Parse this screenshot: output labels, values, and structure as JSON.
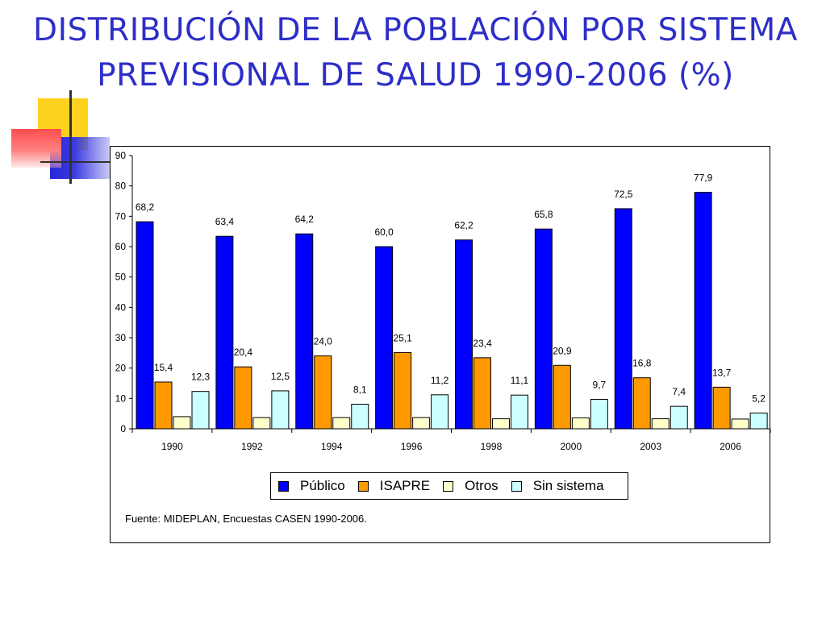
{
  "slide": {
    "title": "DISTRIBUCIÓN DE LA POBLACIÓN POR SISTEMA PREVISIONAL DE SALUD 1990-2006 (%)",
    "source_note": "Fuente: MIDEPLAN, Encuestas CASEN 1990-2006."
  },
  "decor_colors": {
    "yellow": "#ffd21f",
    "red": "#ff4d4d",
    "blue": "#3a3ae0",
    "line": "#333333"
  },
  "chart_data": {
    "type": "bar",
    "categories": [
      "1990",
      "1992",
      "1994",
      "1996",
      "1998",
      "2000",
      "2003",
      "2006"
    ],
    "series": [
      {
        "name": "Público",
        "color": "#0000ff",
        "values": [
          68.2,
          63.4,
          64.2,
          60.0,
          62.2,
          65.8,
          72.5,
          77.9
        ],
        "labels": [
          "68,2",
          "63,4",
          "64,2",
          "60,0",
          "62,2",
          "65,8",
          "72,5",
          "77,9"
        ]
      },
      {
        "name": "ISAPRE",
        "color": "#ff9900",
        "values": [
          15.4,
          20.4,
          24.0,
          25.1,
          23.4,
          20.9,
          16.8,
          13.7
        ],
        "labels": [
          "15,4",
          "20,4",
          "24,0",
          "25,1",
          "23,4",
          "20,9",
          "16,8",
          "13,7"
        ]
      },
      {
        "name": "Otros",
        "color": "#ffffcc",
        "values": [
          4.0,
          3.7,
          3.7,
          3.7,
          3.3,
          3.6,
          3.3,
          3.2
        ],
        "labels": [
          "",
          "",
          "",
          "",
          "",
          "",
          "",
          ""
        ]
      },
      {
        "name": "Sin sistema",
        "color": "#ccffff",
        "values": [
          12.3,
          12.5,
          8.1,
          11.2,
          11.1,
          9.7,
          7.4,
          5.2
        ],
        "labels": [
          "12,3",
          "12,5",
          "8,1",
          "11,2",
          "11,1",
          "9,7",
          "7,4",
          "5,2"
        ]
      }
    ],
    "yticks": [
      "0",
      "10",
      "20",
      "30",
      "40",
      "50",
      "60",
      "70",
      "80",
      "90"
    ],
    "ylim": [
      0,
      90
    ],
    "xlabel": "",
    "ylabel": "",
    "legend_position": "bottom",
    "grid": false
  }
}
